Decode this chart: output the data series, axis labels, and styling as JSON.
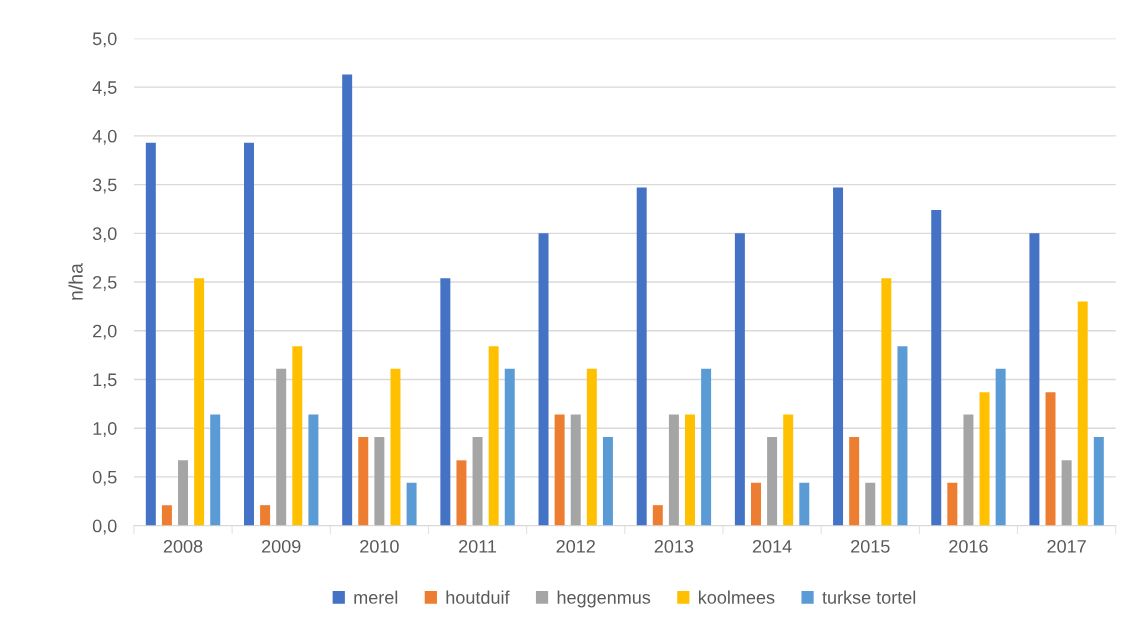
{
  "chart_data": {
    "type": "bar",
    "ylabel": "n/ha",
    "categories": [
      "2008",
      "2009",
      "2010",
      "2011",
      "2012",
      "2013",
      "2014",
      "2015",
      "2016",
      "2017"
    ],
    "series": [
      {
        "name": "merel",
        "color": "#4472c4",
        "values": [
          3.93,
          3.93,
          4.63,
          2.54,
          3.0,
          3.47,
          3.0,
          3.47,
          3.24,
          3.0
        ]
      },
      {
        "name": "houtduif",
        "color": "#ed7d31",
        "values": [
          0.21,
          0.21,
          0.91,
          0.67,
          1.14,
          0.21,
          0.44,
          0.91,
          0.44,
          1.37
        ]
      },
      {
        "name": "heggenmus",
        "color": "#a5a5a5",
        "values": [
          0.67,
          1.61,
          0.91,
          0.91,
          1.14,
          1.14,
          0.91,
          0.44,
          1.14,
          0.67
        ]
      },
      {
        "name": "koolmees",
        "color": "#ffc000",
        "values": [
          2.54,
          1.84,
          1.61,
          1.84,
          1.61,
          1.14,
          1.14,
          2.54,
          1.37,
          2.3
        ]
      },
      {
        "name": "turkse tortel",
        "color": "#5b9bd5",
        "values": [
          1.14,
          1.14,
          0.44,
          1.61,
          0.91,
          1.61,
          0.44,
          1.84,
          1.61,
          0.91
        ]
      }
    ],
    "ylim": [
      0,
      5
    ],
    "yticks": [
      {
        "value": 0,
        "label": "0,0"
      },
      {
        "value": 0.5,
        "label": "0,5"
      },
      {
        "value": 1,
        "label": "1,0"
      },
      {
        "value": 1.5,
        "label": "1,5"
      },
      {
        "value": 2,
        "label": "2,0"
      },
      {
        "value": 2.5,
        "label": "2,5"
      },
      {
        "value": 3,
        "label": "3,0"
      },
      {
        "value": 3.5,
        "label": "3,5"
      },
      {
        "value": 4,
        "label": "4,0"
      },
      {
        "value": 4.5,
        "label": "4,5"
      },
      {
        "value": 5,
        "label": "5,0"
      }
    ],
    "grid": "y",
    "legend": "bottom"
  }
}
